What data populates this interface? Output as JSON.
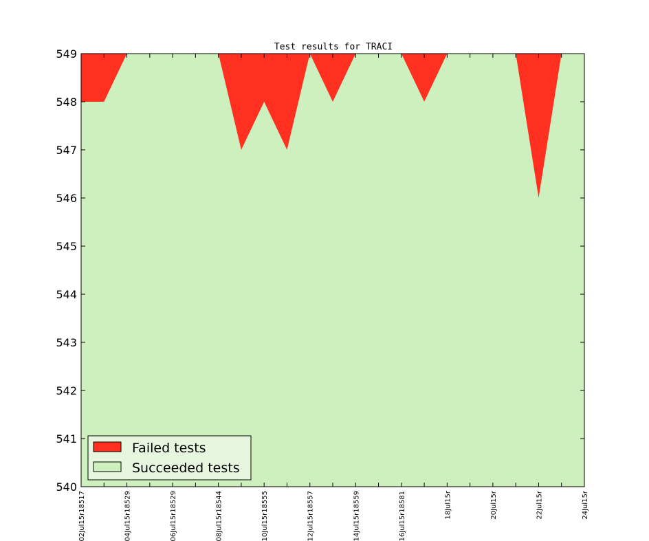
{
  "chart_data": {
    "type": "area",
    "title": "Test results for TRACI",
    "xlabel": "",
    "ylabel": "",
    "ylim": [
      540,
      549
    ],
    "yticks": [
      540,
      541,
      542,
      543,
      544,
      545,
      546,
      547,
      548,
      549
    ],
    "x_tick_labels": [
      "02Jul15r18517",
      "04Jul15r18529",
      "06Jul15r18529",
      "08Jul15r18544",
      "10Jul15r18555",
      "12Jul15r18557",
      "14Jul15r18559",
      "16Jul15r18581",
      "18Jul15r",
      "20Jul15r",
      "22Jul15r",
      "24Jul15r"
    ],
    "total_tests": 549,
    "series": [
      {
        "name": "Failed tests",
        "color": "#ff3020",
        "values": [
          1,
          1,
          0,
          0,
          0,
          0,
          0,
          2,
          1,
          2,
          0,
          1,
          0,
          0,
          0,
          1,
          0,
          0,
          0,
          0,
          3,
          0,
          0
        ]
      },
      {
        "name": "Succeeded tests",
        "color": "#ceefbe",
        "values": [
          548,
          548,
          549,
          549,
          549,
          549,
          549,
          547,
          548,
          547,
          549,
          548,
          549,
          549,
          549,
          548,
          549,
          549,
          549,
          549,
          546,
          549,
          549
        ]
      }
    ],
    "legend": {
      "location": "bottom-left"
    },
    "grid": false
  }
}
